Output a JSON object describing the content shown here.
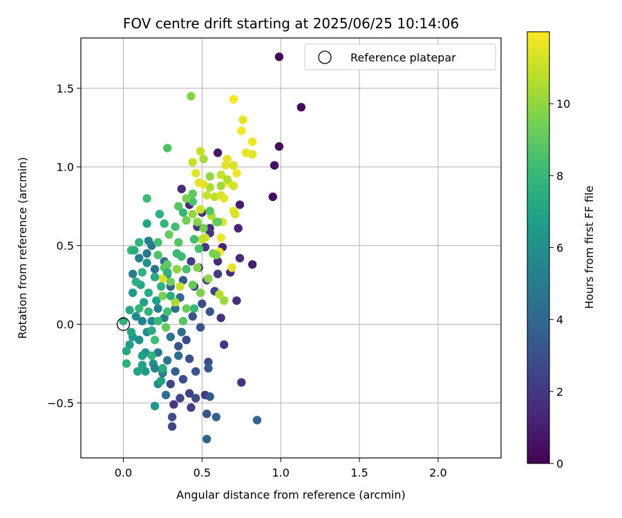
{
  "chart_data": {
    "type": "scatter",
    "title": "FOV centre drift starting at 2025/06/25 10:14:06",
    "xlabel": "Angular distance from reference (arcmin)",
    "ylabel": "Rotation from reference (arcmin)",
    "xlim": [
      -0.27,
      2.4
    ],
    "ylim": [
      -0.85,
      1.82
    ],
    "xticks": [
      0.0,
      0.5,
      1.0,
      1.5,
      2.0
    ],
    "xtick_labels": [
      "0.0",
      "0.5",
      "1.0",
      "1.5",
      "2.0"
    ],
    "yticks": [
      -0.5,
      0.0,
      0.5,
      1.0,
      1.5
    ],
    "ytick_labels": [
      "−0.5",
      "0.0",
      "0.5",
      "1.0",
      "1.5"
    ],
    "grid": true,
    "legend": {
      "position": "top-right",
      "entries": [
        "Reference platepar"
      ]
    },
    "reference_point": {
      "x": 0.0,
      "y": 0.0
    },
    "colorbar": {
      "label": "Hours from first FF file",
      "min": 0,
      "max": 12,
      "ticks": [
        0,
        2,
        4,
        6,
        8,
        10
      ],
      "tick_labels": [
        "0",
        "2",
        "4",
        "6",
        "8",
        "10"
      ],
      "colormap": [
        "#440154",
        "#482878",
        "#3e4989",
        "#31688e",
        "#26828e",
        "#1f9e89",
        "#35b779",
        "#6ece58",
        "#b5de2b",
        "#fde725"
      ]
    },
    "points": [
      [
        0.99,
        1.7,
        0.2
      ],
      [
        1.13,
        1.38,
        0.3
      ],
      [
        0.99,
        1.13,
        0.4
      ],
      [
        0.96,
        1.01,
        0.5
      ],
      [
        0.95,
        0.81,
        0.4
      ],
      [
        0.6,
        1.09,
        0.8
      ],
      [
        0.74,
        0.76,
        1.0
      ],
      [
        0.73,
        0.61,
        1.2
      ],
      [
        0.82,
        0.38,
        1.0
      ],
      [
        0.74,
        0.42,
        1.4
      ],
      [
        0.72,
        0.15,
        1.6
      ],
      [
        0.62,
        0.04,
        1.8
      ],
      [
        0.64,
        -0.13,
        2.0
      ],
      [
        0.75,
        -0.37,
        1.7
      ],
      [
        0.68,
        0.33,
        1.5
      ],
      [
        0.6,
        0.4,
        1.4
      ],
      [
        0.63,
        0.49,
        1.2
      ],
      [
        0.55,
        0.61,
        1.6
      ],
      [
        0.5,
        0.71,
        1.9
      ],
      [
        0.47,
        0.62,
        2.0
      ],
      [
        0.42,
        0.76,
        1.3
      ],
      [
        0.37,
        0.86,
        1.5
      ],
      [
        0.43,
        0.4,
        2.2
      ],
      [
        0.52,
        0.49,
        2.0
      ],
      [
        0.55,
        0.58,
        1.8
      ],
      [
        0.48,
        0.36,
        2.4
      ],
      [
        0.53,
        0.28,
        2.6
      ],
      [
        0.45,
        0.24,
        2.3
      ],
      [
        0.6,
        0.32,
        2.1
      ],
      [
        0.58,
        0.21,
        2.5
      ],
      [
        0.5,
        0.13,
        2.8
      ],
      [
        0.44,
        0.05,
        3.0
      ],
      [
        0.55,
        0.08,
        3.2
      ],
      [
        0.49,
        -0.02,
        3.1
      ],
      [
        0.4,
        -0.1,
        2.9
      ],
      [
        0.35,
        -0.14,
        3.3
      ],
      [
        0.42,
        -0.22,
        3.0
      ],
      [
        0.46,
        -0.3,
        3.1
      ],
      [
        0.54,
        -0.24,
        2.8
      ],
      [
        0.54,
        -0.28,
        3.4
      ],
      [
        0.38,
        -0.35,
        2.7
      ],
      [
        0.3,
        -0.38,
        2.5
      ],
      [
        0.36,
        -0.47,
        2.6
      ],
      [
        0.42,
        -0.44,
        2.4
      ],
      [
        0.46,
        -0.47,
        2.9
      ],
      [
        0.52,
        -0.45,
        2.2
      ],
      [
        0.55,
        -0.46,
        3.5
      ],
      [
        0.43,
        -0.53,
        2.3
      ],
      [
        0.32,
        -0.51,
        2.1
      ],
      [
        0.31,
        -0.59,
        2.8
      ],
      [
        0.31,
        -0.65,
        2.6
      ],
      [
        0.53,
        -0.57,
        3.0
      ],
      [
        0.59,
        -0.59,
        3.6
      ],
      [
        0.53,
        -0.73,
        3.8
      ],
      [
        0.85,
        -0.61,
        3.9
      ],
      [
        0.27,
        -0.45,
        4.2
      ],
      [
        0.25,
        -0.31,
        4.0
      ],
      [
        0.33,
        -0.3,
        3.8
      ],
      [
        0.35,
        -0.2,
        4.3
      ],
      [
        0.28,
        -0.23,
        4.5
      ],
      [
        0.22,
        -0.18,
        4.8
      ],
      [
        0.3,
        -0.08,
        4.6
      ],
      [
        0.37,
        -0.05,
        4.2
      ],
      [
        0.26,
        0.04,
        4.9
      ],
      [
        0.33,
        0.1,
        4.4
      ],
      [
        0.36,
        0.17,
        4.1
      ],
      [
        0.3,
        0.24,
        3.7
      ],
      [
        0.38,
        0.28,
        3.5
      ],
      [
        0.28,
        0.32,
        5.0
      ],
      [
        0.22,
        0.1,
        5.2
      ],
      [
        0.18,
        0.02,
        5.5
      ],
      [
        0.12,
        0.02,
        5.3
      ],
      [
        0.08,
        0.05,
        5.7
      ],
      [
        0.15,
        -0.05,
        5.8
      ],
      [
        0.1,
        -0.1,
        6.0
      ],
      [
        0.06,
        -0.08,
        6.3
      ],
      [
        0.04,
        -0.13,
        6.6
      ],
      [
        0.14,
        -0.18,
        6.2
      ],
      [
        0.19,
        -0.25,
        6.0
      ],
      [
        0.25,
        -0.3,
        5.6
      ],
      [
        0.22,
        -0.38,
        5.9
      ],
      [
        0.14,
        -0.3,
        6.5
      ],
      [
        0.2,
        -0.52,
        6.4
      ],
      [
        0.12,
        -0.26,
        6.8
      ],
      [
        0.2,
        -0.28,
        5.4
      ],
      [
        0.02,
        -0.17,
        7.2
      ],
      [
        0.02,
        -0.25,
        7.6
      ],
      [
        0.05,
        -0.05,
        7.0
      ],
      [
        0.13,
        0.14,
        6.9
      ],
      [
        0.16,
        0.2,
        7.3
      ],
      [
        0.21,
        0.15,
        6.7
      ],
      [
        0.11,
        0.25,
        7.1
      ],
      [
        0.08,
        0.27,
        7.5
      ],
      [
        0.06,
        0.2,
        6.4
      ],
      [
        0.12,
        0.33,
        7.7
      ],
      [
        0.15,
        0.39,
        6.1
      ],
      [
        0.1,
        0.42,
        5.1
      ],
      [
        0.06,
        0.32,
        5.0
      ],
      [
        0.15,
        0.45,
        4.8
      ],
      [
        0.2,
        0.35,
        4.6
      ],
      [
        0.26,
        0.4,
        4.3
      ],
      [
        0.18,
        0.5,
        4.7
      ],
      [
        0.16,
        0.53,
        5.3
      ],
      [
        0.1,
        0.52,
        7.8
      ],
      [
        0.05,
        0.47,
        8.0
      ],
      [
        0.07,
        0.47,
        7.4
      ],
      [
        0.15,
        0.64,
        7.0
      ],
      [
        0.23,
        0.7,
        7.6
      ],
      [
        0.15,
        0.8,
        8.2
      ],
      [
        0.26,
        0.64,
        7.9
      ],
      [
        0.22,
        0.52,
        8.4
      ],
      [
        0.22,
        0.44,
        8.6
      ],
      [
        0.26,
        0.36,
        8.9
      ],
      [
        0.35,
        0.52,
        8.7
      ],
      [
        0.29,
        0.57,
        9.2
      ],
      [
        0.33,
        0.62,
        8.3
      ],
      [
        0.38,
        0.71,
        8.0
      ],
      [
        0.44,
        0.78,
        8.5
      ],
      [
        0.4,
        0.66,
        9.4
      ],
      [
        0.35,
        0.75,
        8.8
      ],
      [
        0.4,
        0.8,
        9.6
      ],
      [
        0.44,
        0.83,
        9.0
      ],
      [
        0.47,
        0.65,
        9.8
      ],
      [
        0.44,
        0.7,
        10.1
      ],
      [
        0.51,
        0.61,
        9.5
      ],
      [
        0.47,
        0.36,
        9.7
      ],
      [
        0.44,
        0.25,
        9.1
      ],
      [
        0.4,
        0.35,
        8.5
      ],
      [
        0.37,
        0.43,
        8.2
      ],
      [
        0.34,
        0.35,
        9.9
      ],
      [
        0.3,
        0.27,
        9.3
      ],
      [
        0.28,
        0.38,
        9.0
      ],
      [
        0.36,
        0.24,
        11.0
      ],
      [
        0.25,
        0.29,
        11.3
      ],
      [
        0.33,
        0.14,
        10.5
      ],
      [
        0.25,
        0.18,
        9.5
      ],
      [
        0.28,
        0.08,
        8.4
      ],
      [
        0.22,
        0.02,
        8.1
      ],
      [
        0.16,
        0.08,
        7.8
      ],
      [
        0.18,
        -0.04,
        7.4
      ],
      [
        0.2,
        -0.1,
        8.3
      ],
      [
        0.27,
        -0.02,
        9.1
      ],
      [
        0.18,
        -0.2,
        7.7
      ],
      [
        0.25,
        -0.28,
        7.3
      ],
      [
        0.24,
        -0.36,
        6.9
      ],
      [
        0.12,
        -0.2,
        6.7
      ],
      [
        0.09,
        -0.3,
        7.0
      ],
      [
        0.1,
        0.1,
        8.0
      ],
      [
        0.04,
        0.09,
        7.2
      ],
      [
        0.0,
        0.02,
        7.8
      ],
      [
        0.38,
        0.02,
        8.8
      ],
      [
        0.4,
        0.1,
        9.2
      ],
      [
        0.45,
        0.1,
        8.1
      ],
      [
        0.49,
        0.2,
        9.6
      ],
      [
        0.54,
        0.29,
        9.9
      ],
      [
        0.61,
        0.19,
        10.7
      ],
      [
        0.64,
        0.15,
        10.2
      ],
      [
        0.57,
        0.45,
        9.4
      ],
      [
        0.52,
        0.55,
        11.2
      ],
      [
        0.5,
        0.54,
        10.9
      ],
      [
        0.56,
        0.69,
        10.6
      ],
      [
        0.49,
        0.73,
        11.1
      ],
      [
        0.53,
        0.82,
        11.0
      ],
      [
        0.58,
        0.81,
        10.8
      ],
      [
        0.62,
        0.82,
        11.3
      ],
      [
        0.55,
        0.87,
        10.5
      ],
      [
        0.55,
        0.94,
        10.0
      ],
      [
        0.51,
        0.89,
        11.5
      ],
      [
        0.48,
        0.9,
        11.6
      ],
      [
        0.46,
        0.96,
        11.4
      ],
      [
        0.49,
        1.1,
        10.9
      ],
      [
        0.51,
        1.05,
        10.4
      ],
      [
        0.44,
        1.03,
        11.0
      ],
      [
        0.43,
        1.45,
        9.8
      ],
      [
        0.28,
        1.12,
        8.6
      ],
      [
        0.62,
        0.95,
        11.0
      ],
      [
        0.65,
        1.01,
        11.5
      ],
      [
        0.66,
        1.05,
        11.6
      ],
      [
        0.7,
        1.01,
        11.3
      ],
      [
        0.72,
        0.96,
        11.7
      ],
      [
        0.67,
        0.9,
        11.8
      ],
      [
        0.7,
        0.88,
        11.2
      ],
      [
        0.64,
        0.8,
        11.5
      ],
      [
        0.7,
        0.72,
        11.6
      ],
      [
        0.71,
        0.7,
        11.3
      ],
      [
        0.63,
        0.65,
        11.4
      ],
      [
        0.62,
        0.55,
        11.7
      ],
      [
        0.61,
        0.46,
        11.8
      ],
      [
        0.69,
        0.36,
        11.5
      ],
      [
        0.78,
        1.09,
        11.6
      ],
      [
        0.82,
        1.16,
        11.7
      ],
      [
        0.75,
        1.23,
        11.8
      ],
      [
        0.76,
        1.3,
        11.6
      ],
      [
        0.7,
        1.43,
        11.9
      ],
      [
        0.82,
        1.08,
        11.5
      ],
      [
        0.62,
        0.88,
        10.3
      ],
      [
        0.66,
        0.92,
        10.6
      ],
      [
        0.59,
        0.65,
        10.0
      ],
      [
        0.59,
        0.44,
        9.6
      ],
      [
        0.6,
        0.65,
        9.0
      ],
      [
        0.55,
        0.72,
        8.8
      ],
      [
        0.48,
        0.48,
        8.5
      ],
      [
        0.45,
        0.54,
        8.3
      ],
      [
        0.34,
        0.45,
        8.1
      ],
      [
        0.28,
        0.33,
        7.9
      ],
      [
        0.24,
        0.24,
        7.7
      ],
      [
        0.3,
        0.18,
        7.5
      ],
      [
        0.2,
        0.3,
        7.2
      ]
    ]
  }
}
